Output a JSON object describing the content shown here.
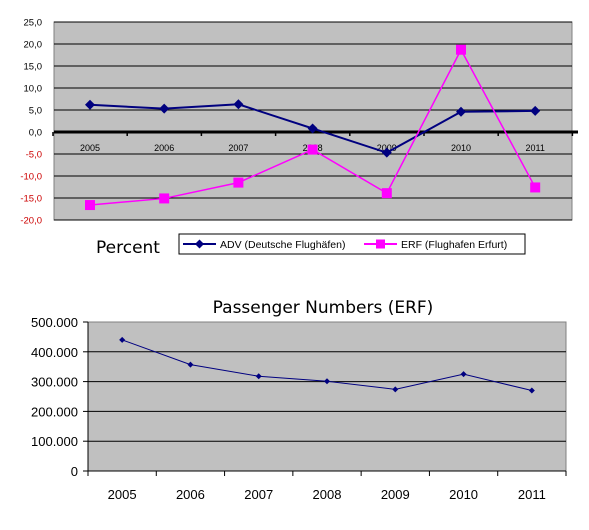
{
  "chart_data": [
    {
      "type": "line",
      "title": "Percent",
      "categories": [
        "2005",
        "2006",
        "2007",
        "2008",
        "2009",
        "2010",
        "2011"
      ],
      "series": [
        {
          "name": "ADV (Deutsche Flughäfen)",
          "color": "#00007f",
          "marker": "diamond",
          "values": [
            6.2,
            5.3,
            6.3,
            0.8,
            -4.7,
            4.6,
            4.8
          ]
        },
        {
          "name": "ERF (Flughafen Erfurt)",
          "color": "#ff00ff",
          "marker": "square",
          "values": [
            -16.6,
            -15.1,
            -11.5,
            -4.0,
            -13.9,
            18.7,
            -12.6
          ]
        }
      ],
      "ylim": [
        -20,
        25
      ],
      "yticks": [
        "25,0",
        "20,0",
        "15,0",
        "10,0",
        "5,0",
        "0,0",
        "-5,0",
        "-10,0",
        "-15,0",
        "-20,0"
      ],
      "yticks_negative_color": "#cc0000",
      "grid": true,
      "legend": "bottom-center",
      "plot_background": "#c0c0c0"
    },
    {
      "type": "line",
      "title": "Passenger Numbers (ERF)",
      "categories": [
        "2005",
        "2006",
        "2007",
        "2008",
        "2009",
        "2010",
        "2011"
      ],
      "series": [
        {
          "color": "#000080",
          "marker": "diamond",
          "values": [
            440000,
            357000,
            318000,
            301000,
            274000,
            325000,
            270000
          ]
        }
      ],
      "ylim": [
        0,
        500000
      ],
      "yticks": [
        "500.000",
        "400.000",
        "300.000",
        "200.000",
        "100.000",
        "0"
      ],
      "grid": true,
      "plot_background": "#c0c0c0"
    }
  ]
}
